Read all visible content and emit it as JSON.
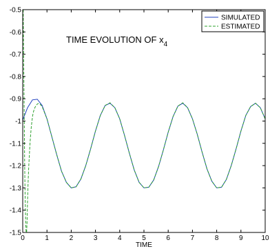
{
  "chart_data": {
    "type": "line",
    "title_main": "TIME EVOLUTION OF x",
    "title_subscript": "4",
    "xlabel": "TIME",
    "ylabel": "",
    "xlim": [
      0,
      10
    ],
    "ylim": [
      -1.5,
      -0.5
    ],
    "xticks": [
      "0",
      "1",
      "2",
      "3",
      "4",
      "5",
      "6",
      "7",
      "8",
      "9",
      "10"
    ],
    "yticks": [
      "-0.5",
      "-0.6",
      "-0.7",
      "-0.8",
      "-0.9",
      "-1",
      "-1.1",
      "-1.2",
      "-1.3",
      "-1.4",
      "-1.5"
    ],
    "legend_position": "top-right",
    "grid": false,
    "series": [
      {
        "name": "SIMULATED",
        "color": "#1f3fbf",
        "style": "solid",
        "x": [
          0,
          0.2,
          0.4,
          0.6,
          0.8,
          1.0,
          1.2,
          1.4,
          1.6,
          1.8,
          2.0,
          2.2,
          2.4,
          2.6,
          2.8,
          3.0,
          3.2,
          3.4,
          3.6,
          3.8,
          4.0,
          4.2,
          4.4,
          4.6,
          4.8,
          5.0,
          5.2,
          5.4,
          5.6,
          5.8,
          6.0,
          6.2,
          6.4,
          6.6,
          6.8,
          7.0,
          7.2,
          7.4,
          7.6,
          7.8,
          8.0,
          8.2,
          8.4,
          8.6,
          8.8,
          9.0,
          9.2,
          9.4,
          9.6,
          9.8,
          10.0
        ],
        "y": [
          -0.995,
          -0.94,
          -0.905,
          -0.902,
          -0.93,
          -0.99,
          -1.07,
          -1.15,
          -1.225,
          -1.275,
          -1.3,
          -1.295,
          -1.26,
          -1.2,
          -1.125,
          -1.045,
          -0.975,
          -0.93,
          -0.92,
          -0.94,
          -0.99,
          -1.065,
          -1.145,
          -1.22,
          -1.275,
          -1.3,
          -1.297,
          -1.265,
          -1.205,
          -1.13,
          -1.05,
          -0.98,
          -0.933,
          -0.92,
          -0.94,
          -0.99,
          -1.06,
          -1.14,
          -1.215,
          -1.27,
          -1.3,
          -1.297,
          -1.262,
          -1.2,
          -1.125,
          -1.045,
          -0.975,
          -0.935,
          -0.92,
          -0.94,
          -0.99
        ]
      },
      {
        "name": "ESTIMATED",
        "color": "#2ea02e",
        "style": "dashed",
        "x": [
          0.02,
          0.04,
          0.06,
          0.08,
          0.1,
          0.12,
          0.14,
          0.16,
          0.18,
          0.2,
          0.22,
          0.25,
          0.28,
          0.3,
          0.32,
          0.35,
          0.38,
          0.41,
          0.45,
          0.5,
          0.55,
          0.6,
          0.65,
          0.7,
          0.8,
          1.0,
          1.2,
          1.4,
          1.6,
          1.8,
          2.0,
          2.2,
          2.4,
          2.6,
          2.8,
          3.0,
          3.2,
          3.4,
          3.6,
          3.8,
          4.0,
          4.2,
          4.4,
          4.6,
          4.8,
          5.0,
          5.2,
          5.4,
          5.6,
          5.8,
          6.0,
          6.2,
          6.4,
          6.6,
          6.8,
          7.0,
          7.2,
          7.4,
          7.6,
          7.8,
          8.0,
          8.2,
          8.4,
          8.6,
          8.8,
          9.0,
          9.2,
          9.4,
          9.6,
          9.8,
          10.0
        ],
        "y": [
          -0.5,
          -0.75,
          -0.95,
          -1.2,
          -1.35,
          -1.45,
          -1.5,
          -1.5,
          -1.45,
          -1.35,
          -1.28,
          -1.2,
          -1.14,
          -1.1,
          -1.07,
          -1.03,
          -1.0,
          -0.975,
          -0.955,
          -0.94,
          -0.93,
          -0.924,
          -0.921,
          -0.922,
          -0.935,
          -0.99,
          -1.07,
          -1.15,
          -1.225,
          -1.275,
          -1.3,
          -1.295,
          -1.26,
          -1.2,
          -1.125,
          -1.045,
          -0.975,
          -0.93,
          -0.918,
          -0.94,
          -0.99,
          -1.065,
          -1.145,
          -1.22,
          -1.275,
          -1.3,
          -1.297,
          -1.265,
          -1.205,
          -1.13,
          -1.05,
          -0.98,
          -0.933,
          -0.918,
          -0.94,
          -0.99,
          -1.06,
          -1.14,
          -1.215,
          -1.27,
          -1.3,
          -1.297,
          -1.262,
          -1.2,
          -1.125,
          -1.045,
          -0.975,
          -0.935,
          -0.92,
          -0.94,
          -0.99
        ]
      }
    ]
  }
}
